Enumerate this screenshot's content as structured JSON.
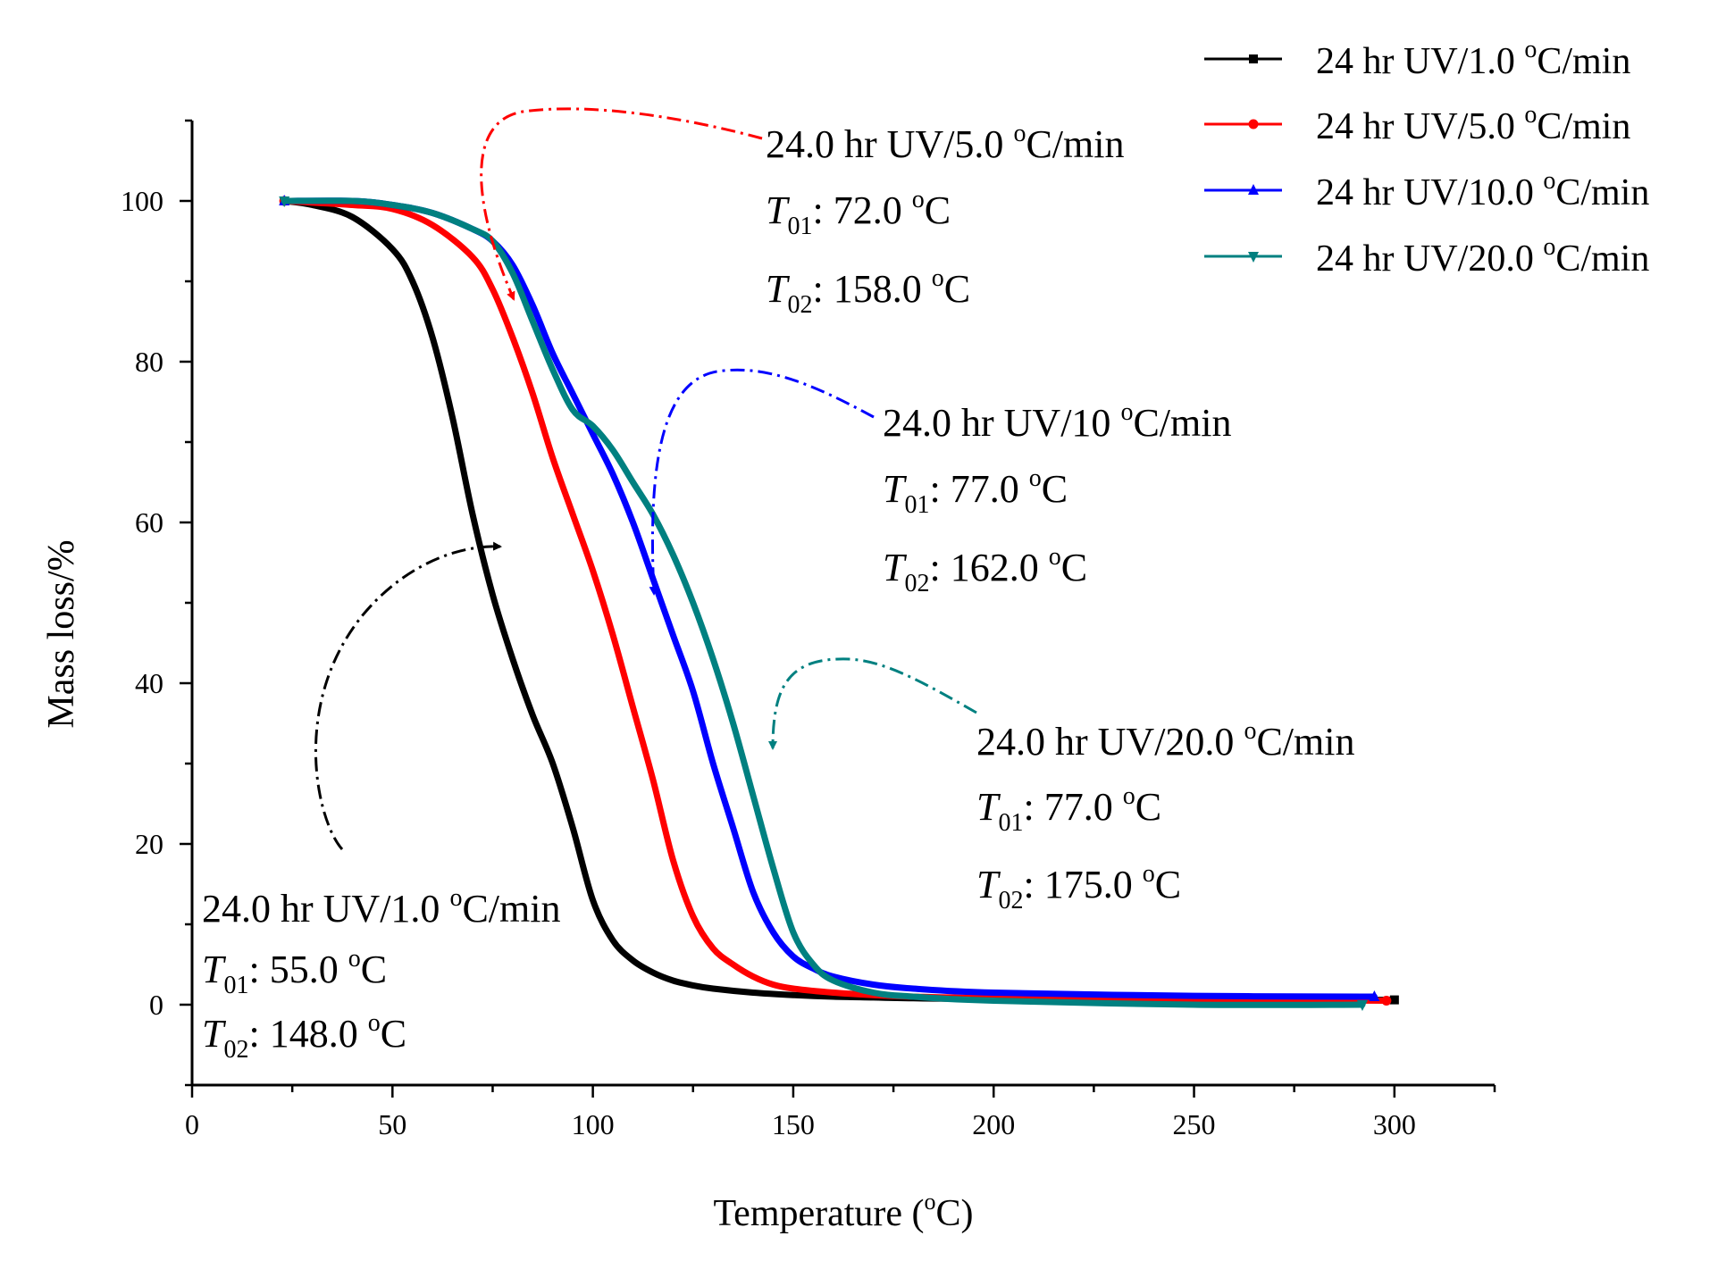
{
  "chart_data": {
    "type": "line",
    "title": "",
    "xlabel": "Temperature (",
    "xlabel_sup": "o",
    "xlabel_tail": "C)",
    "ylabel": "Mass loss/%",
    "xlim": [
      0,
      325
    ],
    "ylim": [
      -10,
      110
    ],
    "xticks": [
      0,
      50,
      100,
      150,
      200,
      250,
      300
    ],
    "yticks": [
      0,
      20,
      40,
      60,
      80,
      100
    ],
    "legend_position": "top-right",
    "series": [
      {
        "name": "24 hr UV/1.0 °C/min",
        "legend": {
          "pre": "24 hr UV/1.0 ",
          "sup": "o",
          "post": "C/min"
        },
        "color": "#000000",
        "marker": "square",
        "x": [
          23,
          30,
          40,
          50,
          55,
          60,
          65,
          70,
          75,
          80,
          85,
          90,
          95,
          100,
          105,
          110,
          115,
          120,
          125,
          130,
          140,
          150,
          160,
          170,
          180,
          200,
          250,
          300
        ],
        "y": [
          100,
          99.5,
          98,
          94,
          90,
          83,
          73,
          61,
          51,
          43,
          36,
          30,
          22,
          13,
          8,
          5.5,
          4,
          3,
          2.4,
          2,
          1.5,
          1.2,
          1,
          0.9,
          0.8,
          0.7,
          0.6,
          0.6
        ]
      },
      {
        "name": "24 hr UV/5.0 °C/min",
        "legend": {
          "pre": "24 hr UV/5.0 ",
          "sup": "o",
          "post": "C/min"
        },
        "color": "#ff0000",
        "marker": "circle",
        "x": [
          23,
          40,
          50,
          60,
          70,
          75,
          80,
          85,
          90,
          95,
          100,
          105,
          110,
          115,
          120,
          125,
          130,
          135,
          140,
          145,
          150,
          160,
          170,
          180,
          200,
          250,
          298
        ],
        "y": [
          100,
          99.5,
          99,
          97,
          93,
          89,
          83,
          76,
          68,
          61,
          54,
          46,
          37,
          28,
          18,
          11,
          7,
          5,
          3.5,
          2.5,
          2,
          1.5,
          1.2,
          1,
          0.8,
          0.6,
          0.5
        ]
      },
      {
        "name": "24 hr UV/10.0 °C/min",
        "legend": {
          "pre": "24 hr UV/10.0 ",
          "sup": "o",
          "post": "C/min"
        },
        "color": "#0000ff",
        "marker": "triangle-up",
        "x": [
          23,
          40,
          50,
          60,
          70,
          75,
          80,
          85,
          90,
          95,
          100,
          105,
          110,
          115,
          120,
          125,
          130,
          135,
          140,
          145,
          150,
          155,
          160,
          170,
          180,
          200,
          250,
          295
        ],
        "y": [
          100,
          100,
          99.5,
          98.5,
          96.5,
          95,
          92,
          87,
          81,
          76,
          71,
          66,
          60,
          53,
          46,
          39,
          30,
          22,
          14,
          9,
          6,
          4.5,
          3.5,
          2.5,
          2,
          1.5,
          1.1,
          1
        ]
      },
      {
        "name": "24 hr UV/20.0 °C/min",
        "legend": {
          "pre": "24 hr UV/20.0 ",
          "sup": "o",
          "post": "C/min"
        },
        "color": "#008080",
        "marker": "triangle-down",
        "x": [
          23,
          40,
          50,
          60,
          70,
          75,
          80,
          85,
          90,
          95,
          100,
          105,
          110,
          115,
          120,
          125,
          130,
          135,
          140,
          145,
          150,
          155,
          160,
          170,
          180,
          200,
          250,
          292
        ],
        "y": [
          100,
          100,
          99.5,
          98.5,
          96.5,
          95,
          91,
          85,
          79,
          74,
          72,
          69,
          65,
          61,
          56,
          50,
          43,
          35,
          26,
          17,
          9,
          5,
          3,
          1.5,
          1,
          0.5,
          0,
          0
        ]
      }
    ],
    "annotations": [
      {
        "series": 0,
        "lines": [
          {
            "pre": "24.0 hr UV/1.0 ",
            "sup": "o",
            "post": "C/min"
          },
          {
            "sym": "T",
            "sub": "01",
            "pre": ": 55.0 ",
            "sup": "o",
            "post": "C"
          },
          {
            "sym": "T",
            "sub": "02",
            "pre": ": 148.0 ",
            "sup": "o",
            "post": "C"
          }
        ]
      },
      {
        "series": 1,
        "lines": [
          {
            "pre": "24.0 hr UV/5.0 ",
            "sup": "o",
            "post": "C/min"
          },
          {
            "sym": "T",
            "sub": "01",
            "pre": ": 72.0 ",
            "sup": "o",
            "post": "C"
          },
          {
            "sym": "T",
            "sub": "02",
            "pre": ": 158.0 ",
            "sup": "o",
            "post": "C"
          }
        ]
      },
      {
        "series": 2,
        "lines": [
          {
            "pre": "24.0 hr UV/10 ",
            "sup": "o",
            "post": "C/min"
          },
          {
            "sym": "T",
            "sub": "01",
            "pre": ": 77.0 ",
            "sup": "o",
            "post": "C"
          },
          {
            "sym": "T",
            "sub": "02",
            "pre": ": 162.0 ",
            "sup": "o",
            "post": "C"
          }
        ]
      },
      {
        "series": 3,
        "lines": [
          {
            "pre": "24.0 hr UV/20.0 ",
            "sup": "o",
            "post": "C/min"
          },
          {
            "sym": "T",
            "sub": "01",
            "pre": ": 77.0 ",
            "sup": "o",
            "post": "C"
          },
          {
            "sym": "T",
            "sub": "02",
            "pre": ": 175.0 ",
            "sup": "o",
            "post": "C"
          }
        ]
      }
    ]
  }
}
